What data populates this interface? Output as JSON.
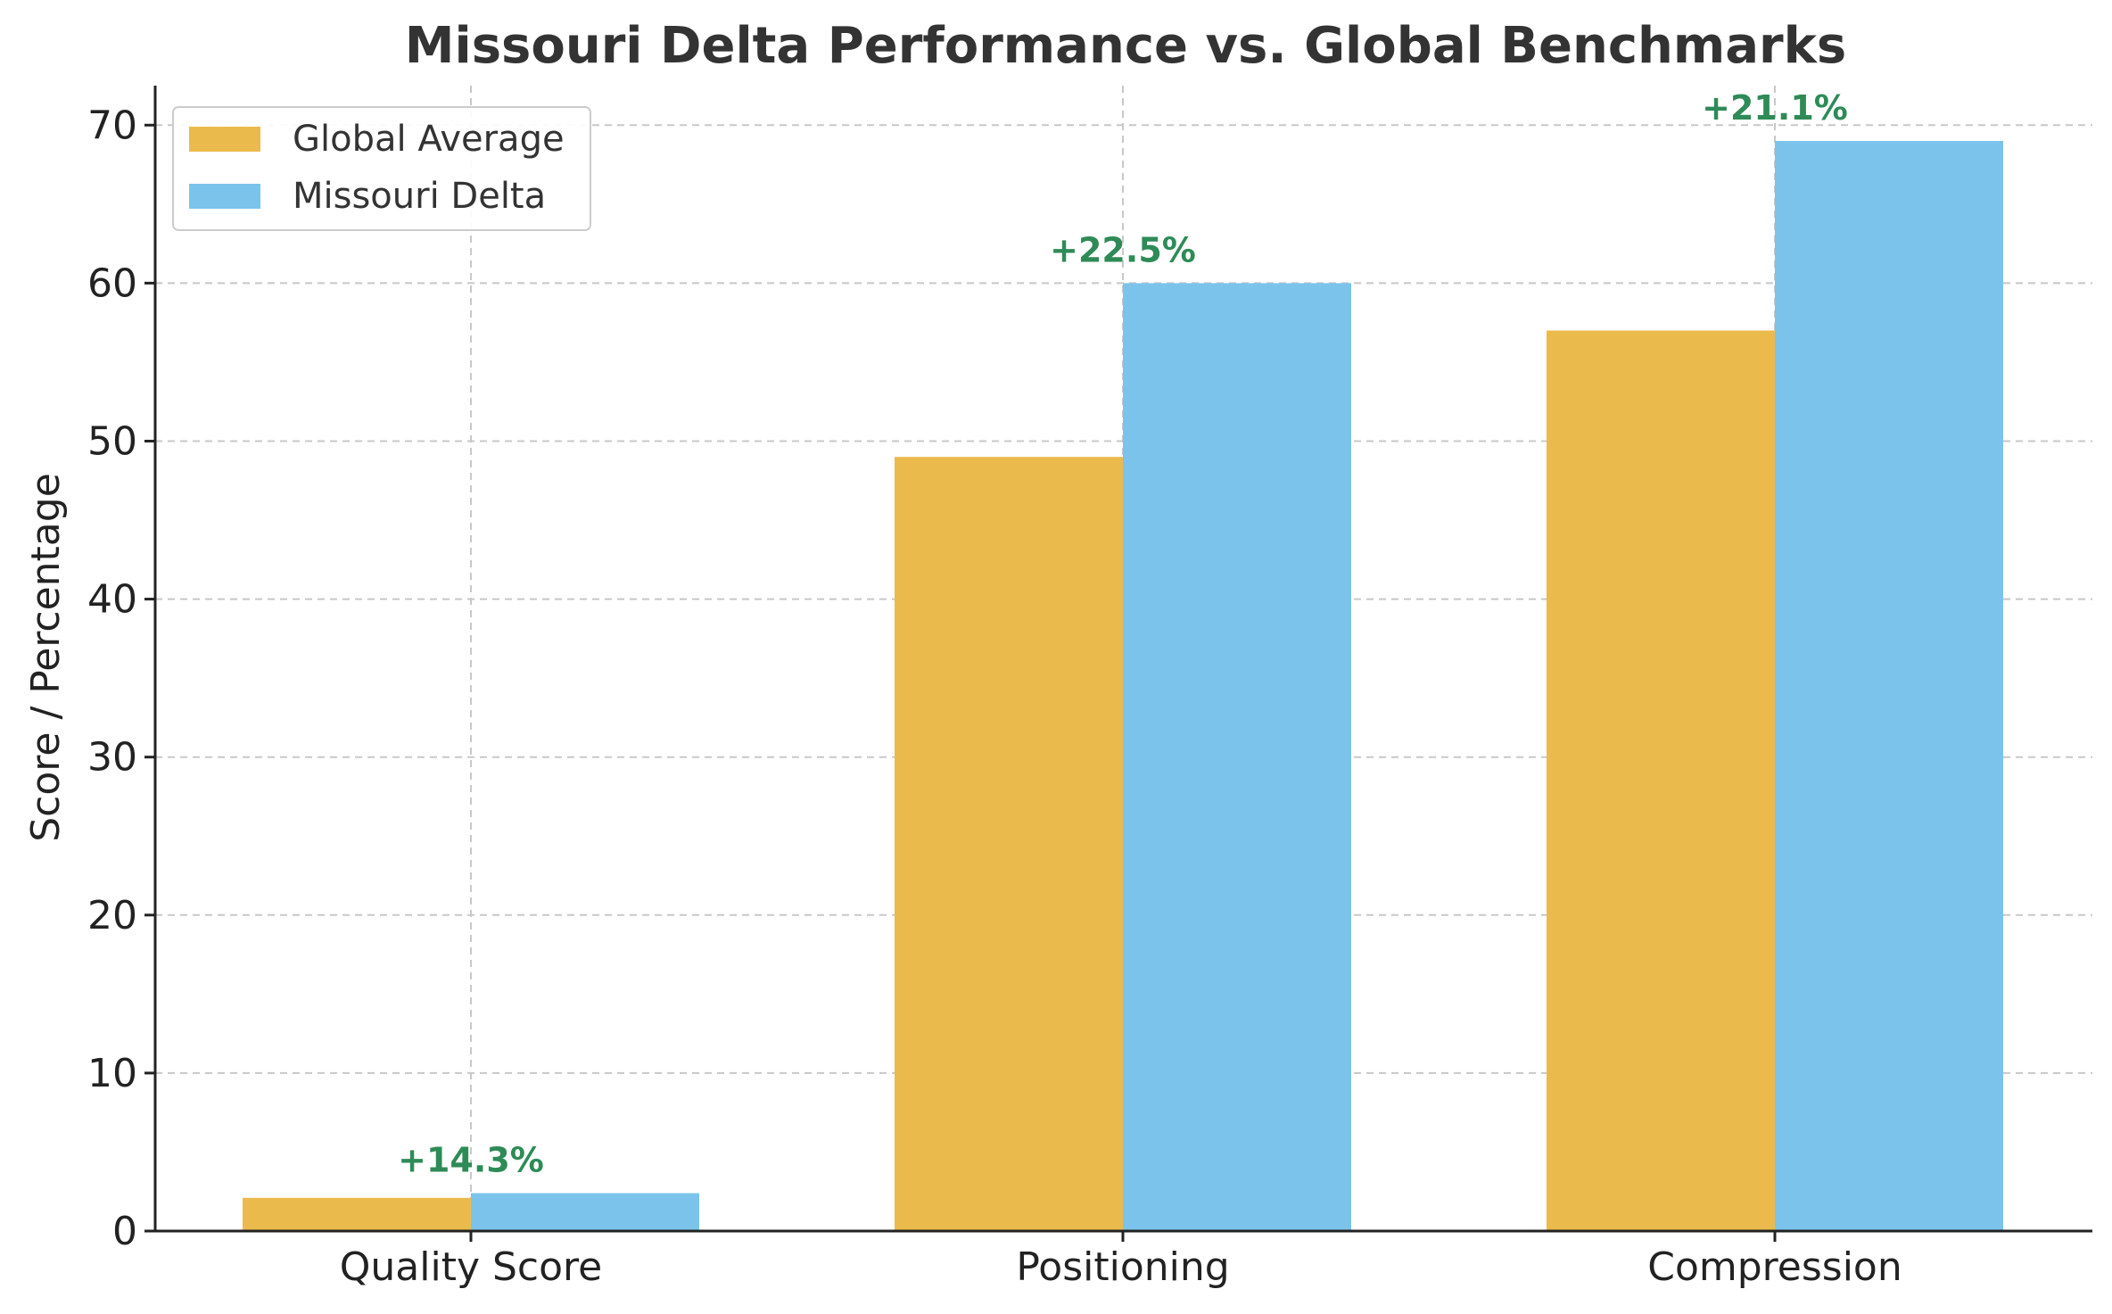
{
  "chart_data": {
    "type": "bar",
    "title": "Missouri Delta Performance vs. Global Benchmarks",
    "xlabel": "",
    "ylabel": "Score / Percentage",
    "categories": [
      "Quality Score",
      "Positioning",
      "Compression"
    ],
    "series": [
      {
        "name": "Global Average",
        "values": [
          2.1,
          49,
          57
        ],
        "color": "#ebba4d"
      },
      {
        "name": "Missouri Delta",
        "values": [
          2.4,
          60,
          69
        ],
        "color": "#7cc3ec"
      }
    ],
    "annotations": [
      "+14.3%",
      "+22.5%",
      "+21.1%"
    ],
    "annotation_color": "#2e8b57",
    "ylim": [
      0,
      72.5
    ],
    "yticks": [
      0,
      10,
      20,
      30,
      40,
      50,
      60,
      70
    ],
    "grid": true,
    "legend_position": "top-left"
  }
}
